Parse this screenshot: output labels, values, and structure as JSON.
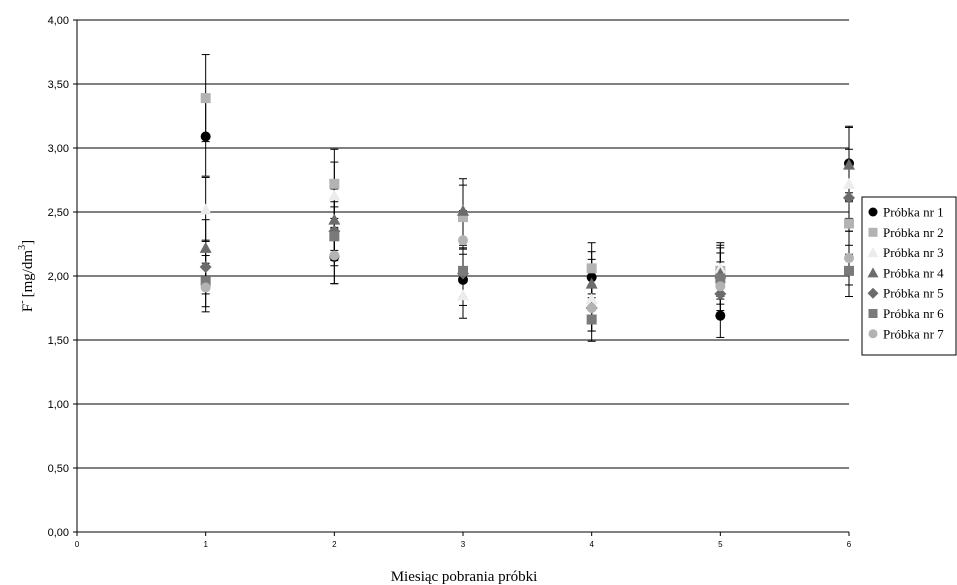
{
  "chart_data": {
    "type": "scatter",
    "xlabel": "Miesiąc pobrania próbki",
    "ylabel_main": "F",
    "ylabel_sup1": "-",
    "ylabel_unit": "[mg/dm",
    "ylabel_sup2": "3",
    "ylabel_close": "]",
    "xlim": [
      0,
      6
    ],
    "ylim": [
      0,
      4
    ],
    "x_ticks": [
      "0",
      "1",
      "2",
      "3",
      "4",
      "5",
      "6"
    ],
    "y_ticks": [
      "0,00",
      "0,50",
      "1,00",
      "1,50",
      "2,00",
      "2,50",
      "3,00",
      "3,50",
      "4,00"
    ],
    "y_tick_values": [
      0,
      0.5,
      1,
      1.5,
      2,
      2.5,
      3,
      3.5,
      4
    ],
    "grid": "horizontal",
    "legend_position": "right",
    "series": [
      {
        "name": "Próbka nr 1",
        "marker": "circle",
        "color": "#000000",
        "x": [
          1,
          2,
          3,
          4,
          5,
          6
        ],
        "y": [
          3.09,
          2.15,
          1.97,
          1.99,
          1.69,
          2.88
        ],
        "err": [
          0.31,
          0.21,
          0.2,
          0.2,
          0.17,
          0.29
        ]
      },
      {
        "name": "Próbka nr 2",
        "marker": "square",
        "color": "#b3b3b3",
        "x": [
          1,
          2,
          3,
          4,
          5,
          6
        ],
        "y": [
          3.39,
          2.72,
          2.46,
          2.06,
          2.04,
          2.41
        ],
        "err": [
          0.34,
          0.27,
          0.25,
          0.2,
          0.2,
          0.24
        ]
      },
      {
        "name": "Próbka nr 3",
        "marker": "triangle",
        "color": "#ececec",
        "x": [
          1,
          2,
          3,
          4,
          5,
          6
        ],
        "y": [
          2.52,
          2.63,
          1.85,
          1.82,
          2.06,
          2.72
        ],
        "err": [
          0.25,
          0.26,
          0.18,
          0.18,
          0.2,
          0.27
        ]
      },
      {
        "name": "Próbka nr 4",
        "marker": "triangle",
        "color": "#6b6b6b",
        "x": [
          1,
          2,
          3,
          4,
          5,
          6
        ],
        "y": [
          2.22,
          2.44,
          2.51,
          1.94,
          2.02,
          2.87
        ],
        "err": [
          0.22,
          0.24,
          0.25,
          0.19,
          0.2,
          0.29
        ]
      },
      {
        "name": "Próbka nr 5",
        "marker": "diamond",
        "color": "#6b6b6b",
        "x": [
          1,
          2,
          3,
          4,
          5,
          6
        ],
        "y": [
          2.07,
          2.35,
          2.02,
          1.75,
          1.86,
          2.61
        ],
        "err": [
          0.21,
          0.23,
          0.2,
          0.18,
          0.19,
          0.26
        ]
      },
      {
        "name": "Próbka nr 6",
        "marker": "square",
        "color": "#7a7a7a",
        "x": [
          1,
          2,
          3,
          4,
          5,
          6
        ],
        "y": [
          1.96,
          2.31,
          2.04,
          1.66,
          1.98,
          2.04
        ],
        "err": [
          0.2,
          0.23,
          0.2,
          0.17,
          0.2,
          0.2
        ]
      },
      {
        "name": "Próbka nr 7",
        "marker": "circle",
        "color": "#b3b3b3",
        "x": [
          1,
          2,
          3,
          4,
          5,
          6
        ],
        "y": [
          1.91,
          2.16,
          2.28,
          1.75,
          1.92,
          2.14
        ],
        "err": [
          0.19,
          0.22,
          0.23,
          0.18,
          0.19,
          0.21
        ]
      }
    ]
  }
}
